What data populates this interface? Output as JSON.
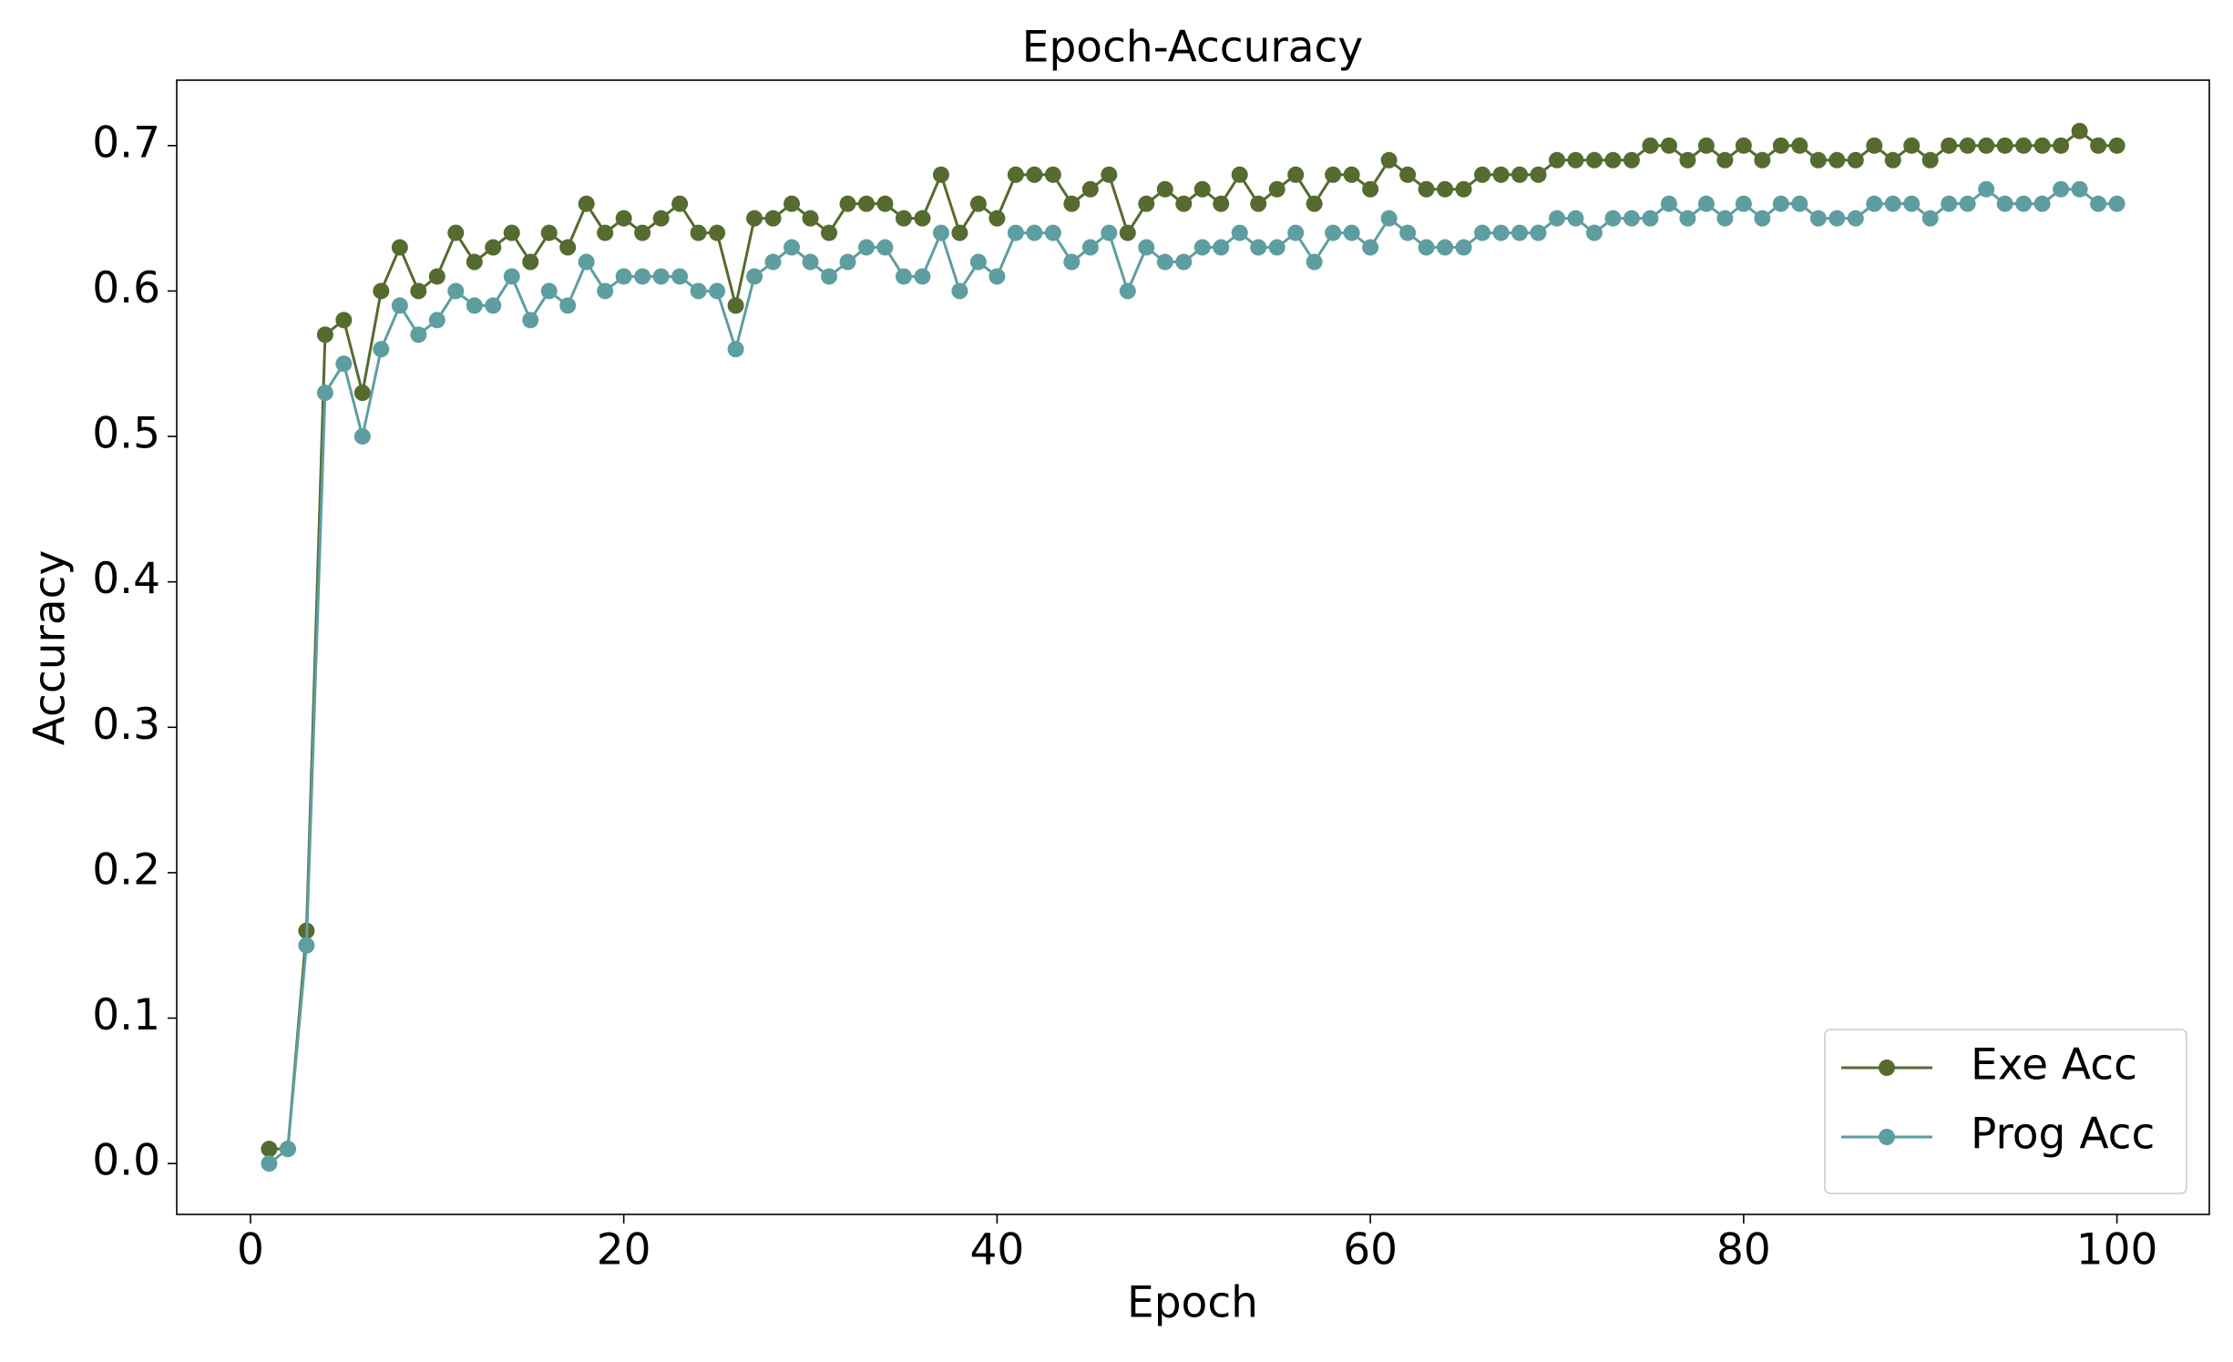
{
  "chart_data": {
    "type": "line",
    "title": "Epoch-Accuracy",
    "x_label": "Epoch",
    "y_label": "Accuracy",
    "x": [
      1,
      2,
      3,
      4,
      5,
      6,
      7,
      8,
      9,
      10,
      11,
      12,
      13,
      14,
      15,
      16,
      17,
      18,
      19,
      20,
      21,
      22,
      23,
      24,
      25,
      26,
      27,
      28,
      29,
      30,
      31,
      32,
      33,
      34,
      35,
      36,
      37,
      38,
      39,
      40,
      41,
      42,
      43,
      44,
      45,
      46,
      47,
      48,
      49,
      50,
      51,
      52,
      53,
      54,
      55,
      56,
      57,
      58,
      59,
      60,
      61,
      62,
      63,
      64,
      65,
      66,
      67,
      68,
      69,
      70,
      71,
      72,
      73,
      74,
      75,
      76,
      77,
      78,
      79,
      80,
      81,
      82,
      83,
      84,
      85,
      86,
      87,
      88,
      89,
      90,
      91,
      92,
      93,
      94,
      95,
      96,
      97,
      98,
      99,
      100
    ],
    "series": [
      {
        "name": "Exe Acc",
        "color": "#556b2f",
        "values": [
          0.01,
          0.01,
          0.16,
          0.57,
          0.58,
          0.53,
          0.6,
          0.63,
          0.6,
          0.61,
          0.64,
          0.62,
          0.63,
          0.64,
          0.62,
          0.64,
          0.63,
          0.66,
          0.64,
          0.65,
          0.64,
          0.65,
          0.66,
          0.64,
          0.64,
          0.59,
          0.65,
          0.65,
          0.66,
          0.65,
          0.64,
          0.66,
          0.66,
          0.66,
          0.65,
          0.65,
          0.68,
          0.64,
          0.66,
          0.65,
          0.68,
          0.68,
          0.68,
          0.66,
          0.67,
          0.68,
          0.64,
          0.66,
          0.67,
          0.66,
          0.67,
          0.66,
          0.68,
          0.66,
          0.67,
          0.68,
          0.66,
          0.68,
          0.68,
          0.67,
          0.69,
          0.68,
          0.67,
          0.67,
          0.67,
          0.68,
          0.68,
          0.68,
          0.68,
          0.69,
          0.69,
          0.69,
          0.69,
          0.69,
          0.7,
          0.7,
          0.69,
          0.7,
          0.69,
          0.7,
          0.69,
          0.7,
          0.7,
          0.69,
          0.69,
          0.69,
          0.7,
          0.69,
          0.7,
          0.69,
          0.7,
          0.7,
          0.7,
          0.7,
          0.7,
          0.7,
          0.7,
          0.71,
          0.7,
          0.7
        ]
      },
      {
        "name": "Prog Acc",
        "color": "#5f9ea0",
        "values": [
          0.0,
          0.01,
          0.15,
          0.53,
          0.55,
          0.5,
          0.56,
          0.59,
          0.57,
          0.58,
          0.6,
          0.59,
          0.59,
          0.61,
          0.58,
          0.6,
          0.59,
          0.62,
          0.6,
          0.61,
          0.61,
          0.61,
          0.61,
          0.6,
          0.6,
          0.56,
          0.61,
          0.62,
          0.63,
          0.62,
          0.61,
          0.62,
          0.63,
          0.63,
          0.61,
          0.61,
          0.64,
          0.6,
          0.62,
          0.61,
          0.64,
          0.64,
          0.64,
          0.62,
          0.63,
          0.64,
          0.6,
          0.63,
          0.62,
          0.62,
          0.63,
          0.63,
          0.64,
          0.63,
          0.63,
          0.64,
          0.62,
          0.64,
          0.64,
          0.63,
          0.65,
          0.64,
          0.63,
          0.63,
          0.63,
          0.64,
          0.64,
          0.64,
          0.64,
          0.65,
          0.65,
          0.64,
          0.65,
          0.65,
          0.65,
          0.66,
          0.65,
          0.66,
          0.65,
          0.66,
          0.65,
          0.66,
          0.66,
          0.65,
          0.65,
          0.65,
          0.66,
          0.66,
          0.66,
          0.65,
          0.66,
          0.66,
          0.67,
          0.66,
          0.66,
          0.66,
          0.67,
          0.67,
          0.66,
          0.66
        ]
      }
    ],
    "xlim": [
      -3.95,
      104.95
    ],
    "xticks": [
      0,
      20,
      40,
      60,
      80,
      100
    ],
    "ylim": [
      -0.035,
      0.745
    ],
    "yticks": [
      {
        "value": 0,
        "label": "0.0"
      },
      0.1,
      0.2,
      0.3,
      0.4,
      0.5,
      0.6,
      0.7
    ],
    "grid": false,
    "legend": "lower right"
  }
}
